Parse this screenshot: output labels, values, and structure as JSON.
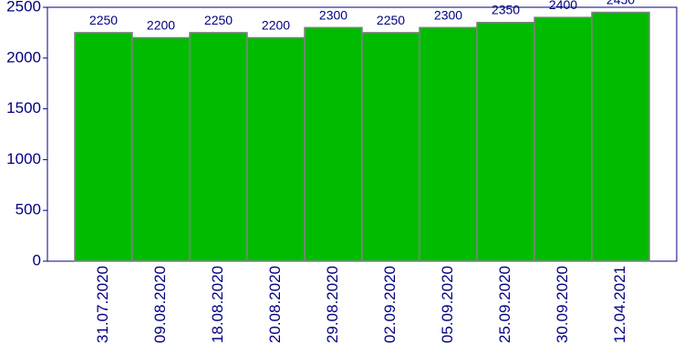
{
  "chart_data": {
    "type": "bar",
    "categories": [
      "31.07.2020",
      "09.08.2020",
      "18.08.2020",
      "20.08.2020",
      "29.08.2020",
      "02.09.2020",
      "05.09.2020",
      "25.09.2020",
      "30.09.2020",
      "12.04.2021"
    ],
    "values": [
      2250,
      2200,
      2250,
      2200,
      2300,
      2250,
      2300,
      2350,
      2400,
      2450
    ],
    "color": "#00bb00",
    "ylim": [
      0,
      2500
    ],
    "yticks": [
      0,
      500,
      1000,
      1500,
      2000,
      2500
    ]
  }
}
